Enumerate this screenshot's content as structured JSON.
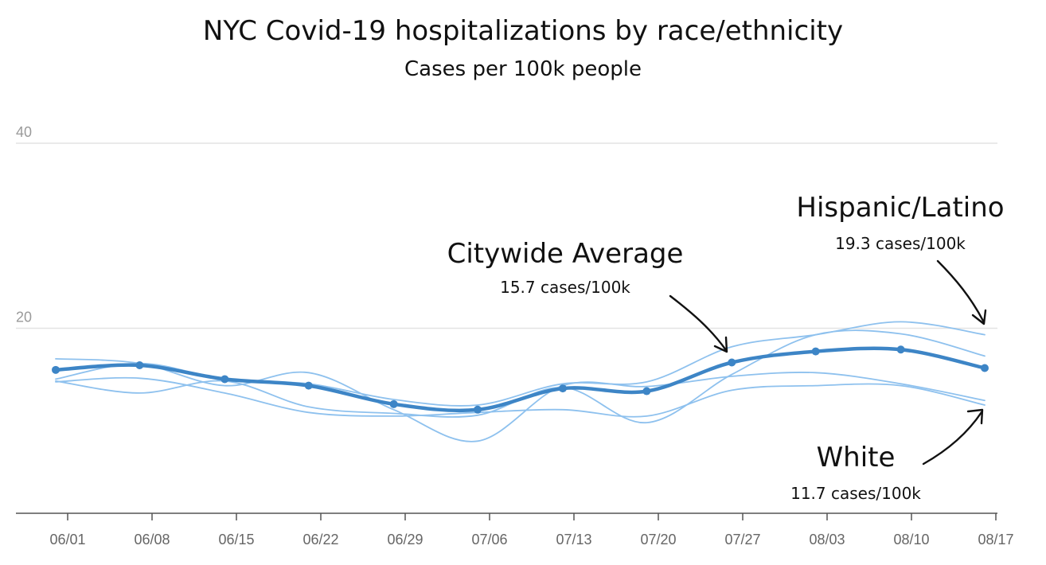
{
  "chart_data": {
    "type": "line",
    "title": "NYC Covid-19 hospitalizations by race/ethnicity",
    "subtitle": "Cases per 100k people",
    "xlabel": "",
    "ylabel": "",
    "x": [
      "06/01",
      "06/08",
      "06/15",
      "06/22",
      "06/29",
      "07/06",
      "07/13",
      "07/20",
      "07/27",
      "08/03",
      "08/10",
      "08/17"
    ],
    "x_points": [
      0.0,
      6.8,
      13.7,
      20.5,
      27.4,
      34.2,
      41.1,
      47.9,
      54.8,
      61.6,
      68.5,
      75.3
    ],
    "ylim": [
      0,
      40
    ],
    "yticks": [
      "20",
      "40"
    ],
    "grid": true,
    "series": [
      {
        "name": "Citywide Average",
        "emphasis": true,
        "color": "#3d85c6",
        "values": [
          15.5,
          16.0,
          14.5,
          13.8,
          11.8,
          11.2,
          13.5,
          13.2,
          16.3,
          17.5,
          17.7,
          15.7
        ]
      },
      {
        "name": "Hispanic/Latino",
        "color": "#8ec1ee",
        "values": [
          14.5,
          16.2,
          14.5,
          14.0,
          12.3,
          11.7,
          14.0,
          14.2,
          18.0,
          19.3,
          20.7,
          19.3
        ]
      },
      {
        "name": "White",
        "color": "#8ec1ee",
        "values": [
          14.2,
          14.6,
          13.0,
          10.9,
          10.5,
          10.9,
          11.2,
          10.5,
          13.3,
          13.8,
          13.8,
          11.7
        ]
      },
      {
        "name": "",
        "color": "#8ec1ee",
        "values": [
          16.7,
          16.2,
          13.8,
          15.2,
          11.2,
          7.8,
          13.8,
          13.7,
          14.8,
          15.2,
          14.0,
          12.2
        ]
      },
      {
        "name": "",
        "color": "#8ec1ee",
        "values": [
          14.3,
          13.0,
          14.3,
          11.5,
          10.8,
          10.6,
          13.6,
          9.8,
          15.0,
          19.3,
          19.4,
          17.0
        ]
      }
    ],
    "annotations": [
      {
        "series": "Citywide Average",
        "label": "Citywide Average",
        "value_text": "15.7 cases/100k"
      },
      {
        "series": "Hispanic/Latino",
        "label": "Hispanic/Latino",
        "value_text": "19.3 cases/100k"
      },
      {
        "series": "White",
        "label": "White",
        "value_text": "11.7 cases/100k"
      }
    ]
  }
}
